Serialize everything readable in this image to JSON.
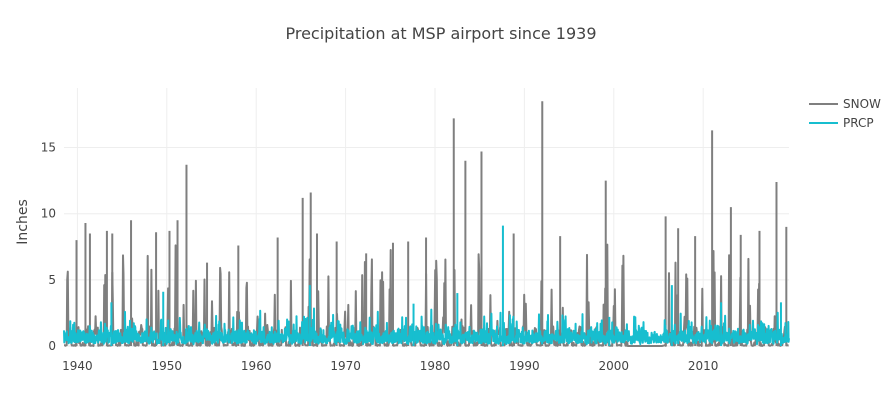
{
  "chart_data": {
    "type": "line",
    "title": "Precipitation at MSP airport since 1939",
    "xlabel": "",
    "ylabel": "Inches",
    "xlim": [
      1938.5,
      2019.6
    ],
    "ylim": [
      0,
      19.5
    ],
    "x_ticks": [
      1940,
      1950,
      1960,
      1970,
      1980,
      1990,
      2000,
      2010
    ],
    "y_ticks": [
      0,
      5,
      10,
      15
    ],
    "grid": true,
    "legend_position": "top-right",
    "series": [
      {
        "name": "SNOW",
        "color": "#7f7f7f",
        "x": [
          1939.9,
          1940.9,
          1941.4,
          1943.3,
          1943.9,
          1946.0,
          1948.8,
          1950.3,
          1951.2,
          1952.2,
          1954.5,
          1958.0,
          1962.4,
          1965.2,
          1966.1,
          1966.8,
          1969.0,
          1972.3,
          1975.3,
          1977.0,
          1979.0,
          1982.1,
          1983.4,
          1985.2,
          1988.8,
          1992.0,
          1994.0,
          1999.1,
          2005.8,
          2007.2,
          2009.1,
          2011.0,
          2013.1,
          2014.2,
          2016.3,
          2018.2,
          2019.3
        ],
        "values": [
          8.0,
          9.3,
          8.5,
          8.7,
          8.5,
          9.5,
          8.6,
          8.7,
          9.5,
          13.7,
          6.3,
          7.6,
          8.2,
          11.2,
          11.6,
          8.5,
          7.9,
          7.0,
          7.8,
          7.9,
          8.2,
          17.2,
          14.0,
          14.7,
          8.5,
          18.5,
          8.3,
          12.5,
          9.8,
          8.9,
          8.3,
          16.3,
          10.5,
          8.4,
          8.7,
          12.4,
          9.0
        ]
      },
      {
        "name": "PRCP",
        "color": "#17becf",
        "x": [
          1943.8,
          1949.6,
          1966.0,
          1977.6,
          1982.5,
          1987.6,
          1999.5,
          2006.5,
          2012.0,
          2018.7
        ],
        "values": [
          3.3,
          4.1,
          4.6,
          3.2,
          4.0,
          9.1,
          2.2,
          4.6,
          3.3,
          3.3
        ]
      }
    ]
  }
}
